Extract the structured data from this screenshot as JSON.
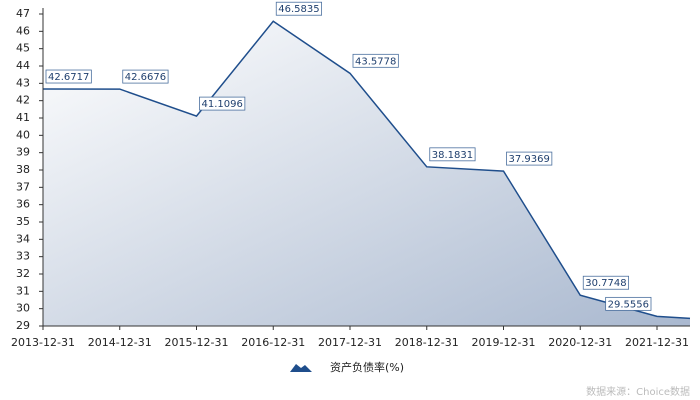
{
  "chart_data": {
    "type": "area",
    "categories": [
      "2013-12-31",
      "2014-12-31",
      "2015-12-31",
      "2016-12-31",
      "2017-12-31",
      "2018-12-31",
      "2019-12-31",
      "2020-12-31",
      "2021-12-31"
    ],
    "series": [
      {
        "name": "资产负债率(%)",
        "color": "#1f4e8c",
        "values": [
          42.6717,
          42.6676,
          41.1096,
          46.5835,
          43.5778,
          38.1831,
          37.9369,
          30.7748,
          29.5556
        ]
      }
    ],
    "ylim": [
      29,
      47
    ],
    "yticks": [
      29,
      30,
      31,
      32,
      33,
      34,
      35,
      36,
      37,
      38,
      39,
      40,
      41,
      42,
      43,
      44,
      45,
      46,
      47
    ],
    "grid": false,
    "legend": "bottom",
    "source": "数据来源：Choice数据"
  }
}
